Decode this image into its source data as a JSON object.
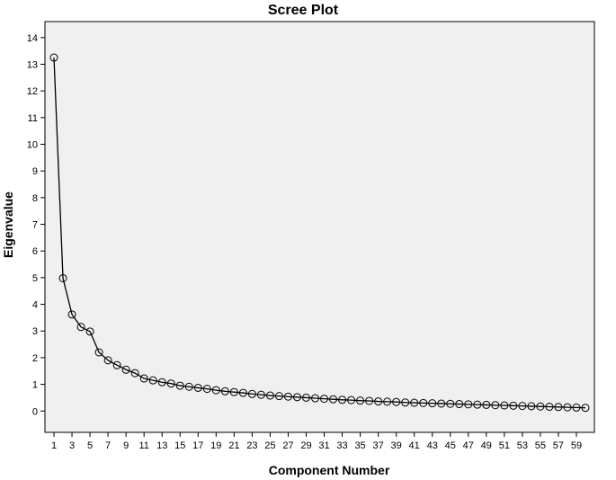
{
  "chart_data": {
    "type": "line",
    "title": "Scree Plot",
    "xlabel": "Component Number",
    "ylabel": "Eigenvalue",
    "xlim": [
      0,
      61
    ],
    "ylim": [
      -0.8,
      14.6
    ],
    "y_ticks": [
      0,
      1,
      2,
      3,
      4,
      5,
      6,
      7,
      8,
      9,
      10,
      11,
      12,
      13,
      14
    ],
    "x_ticks": [
      1,
      3,
      5,
      7,
      9,
      11,
      13,
      15,
      17,
      19,
      21,
      23,
      25,
      27,
      29,
      31,
      33,
      35,
      37,
      39,
      41,
      43,
      45,
      47,
      49,
      51,
      53,
      55,
      57,
      59
    ],
    "grid": false,
    "plot_background": "#F0F0F0",
    "line_color": "#000000",
    "marker": "open-circle",
    "x": [
      1,
      2,
      3,
      4,
      5,
      6,
      7,
      8,
      9,
      10,
      11,
      12,
      13,
      14,
      15,
      16,
      17,
      18,
      19,
      20,
      21,
      22,
      23,
      24,
      25,
      26,
      27,
      28,
      29,
      30,
      31,
      32,
      33,
      34,
      35,
      36,
      37,
      38,
      39,
      40,
      41,
      42,
      43,
      44,
      45,
      46,
      47,
      48,
      49,
      50,
      51,
      52,
      53,
      54,
      55,
      56,
      57,
      58,
      59,
      60
    ],
    "values": [
      13.25,
      4.98,
      3.62,
      3.15,
      2.98,
      2.2,
      1.9,
      1.72,
      1.55,
      1.42,
      1.22,
      1.15,
      1.08,
      1.03,
      0.95,
      0.91,
      0.87,
      0.83,
      0.78,
      0.74,
      0.71,
      0.68,
      0.64,
      0.61,
      0.58,
      0.56,
      0.54,
      0.52,
      0.5,
      0.48,
      0.46,
      0.44,
      0.42,
      0.41,
      0.39,
      0.38,
      0.36,
      0.35,
      0.34,
      0.32,
      0.31,
      0.3,
      0.29,
      0.28,
      0.27,
      0.26,
      0.25,
      0.24,
      0.23,
      0.22,
      0.21,
      0.2,
      0.19,
      0.18,
      0.17,
      0.16,
      0.15,
      0.14,
      0.13,
      0.12
    ]
  }
}
